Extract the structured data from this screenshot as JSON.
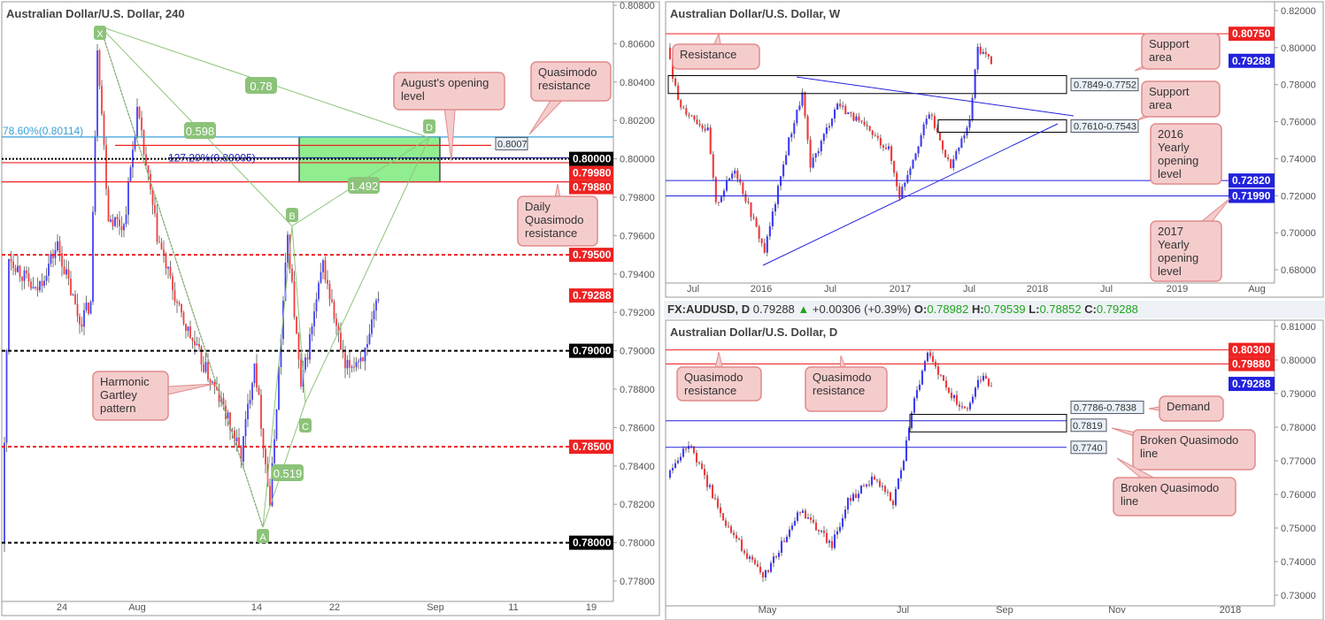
{
  "colors": {
    "up": "#3d3dfa",
    "down": "#f23a3a",
    "wick": "#555555",
    "pattern": "#8fc47a",
    "pattern_label_bg": "#8cc37a",
    "callout_bg": "#f5cccc",
    "callout_border": "#e08c8c",
    "green_zone": "#90ee90",
    "support_line": "#2222dd",
    "resistance_line": "#ee2222",
    "fib_line": "#3aa0d8"
  },
  "header": {
    "symbol": "FX:AUDUSD, D",
    "last": "0.79288",
    "change": "+0.00306 (+0.39%)",
    "arrow_icon": "triangle-up-icon",
    "o_label": "O:",
    "o": "0.78982",
    "h_label": "H:",
    "h": "0.79539",
    "l_label": "L:",
    "l": "0.78852",
    "c_label": "C:",
    "c": "0.79288"
  },
  "chart_data": [
    {
      "id": "left",
      "type": "candlestick",
      "title": "Australian Dollar/U.S. Dollar, 240",
      "ylim": [
        0.777,
        0.8085
      ],
      "y_ticks": [
        "0.80800",
        "0.80600",
        "0.80400",
        "0.80200",
        "0.80000",
        "0.79800",
        "0.79600",
        "0.79400",
        "0.79200",
        "0.79000",
        "0.78800",
        "0.78600",
        "0.78400",
        "0.78200",
        "0.78000",
        "0.77800"
      ],
      "x_ticks": [
        "24",
        "Aug",
        "14",
        "22",
        "Sep",
        "11",
        "19"
      ],
      "price_path": [
        [
          0,
          0.78
        ],
        [
          3,
          0.795
        ],
        [
          15,
          0.793
        ],
        [
          25,
          0.7955
        ],
        [
          35,
          0.7915
        ],
        [
          40,
          0.7925
        ],
        [
          43,
          0.806
        ],
        [
          48,
          0.797
        ],
        [
          55,
          0.7965
        ],
        [
          61,
          0.8025
        ],
        [
          70,
          0.796
        ],
        [
          80,
          0.792
        ],
        [
          90,
          0.7895
        ],
        [
          100,
          0.787
        ],
        [
          108,
          0.7845
        ],
        [
          114,
          0.7895
        ],
        [
          121,
          0.782
        ],
        [
          129,
          0.796
        ],
        [
          135,
          0.788
        ],
        [
          145,
          0.7945
        ],
        [
          155,
          0.789
        ],
        [
          165,
          0.79
        ],
        [
          170,
          0.793
        ]
      ],
      "levels": [
        {
          "price": 0.80114,
          "label": "78.60%(0.80114)",
          "color": "#3aa0d8",
          "style": "solid"
        },
        {
          "price": 0.8007,
          "label": "0.8007",
          "color": "#ee2222",
          "style": "solid"
        },
        {
          "price": 0.80005,
          "label": "127.20%(0.80005)",
          "color": "#2222aa",
          "style": "solid"
        },
        {
          "price": 0.8,
          "color": "#000000",
          "style": "dotted"
        },
        {
          "price": 0.7998,
          "color": "#ee2222",
          "style": "solid"
        },
        {
          "price": 0.7988,
          "color": "#ee2222",
          "style": "solid"
        },
        {
          "price": 0.795,
          "color": "#ee2222",
          "style": "dashed"
        },
        {
          "price": 0.79,
          "color": "#000000",
          "style": "dashed"
        },
        {
          "price": 0.785,
          "color": "#ee2222",
          "style": "dashed"
        },
        {
          "price": 0.78,
          "color": "#000000",
          "style": "dashed"
        }
      ],
      "axis_tags": [
        {
          "text": "0.80000",
          "price": 0.8,
          "color": "#000000"
        },
        {
          "text": "0.79980",
          "price": 0.7998,
          "color": "#ee2222"
        },
        {
          "text": "0.79880",
          "price": 0.7988,
          "color": "#ee2222"
        },
        {
          "text": "0.79500",
          "price": 0.795,
          "color": "#ee2222"
        },
        {
          "text": "0.79288",
          "price": 0.79288,
          "color": "#ee2222"
        },
        {
          "text": "0.79000",
          "price": 0.79,
          "color": "#000000"
        },
        {
          "text": "0.78500",
          "price": 0.785,
          "color": "#ee2222"
        },
        {
          "text": "0.78000",
          "price": 0.78,
          "color": "#000000"
        }
      ],
      "zone": {
        "top": 0.80114,
        "bottom": 0.7988
      },
      "pattern": {
        "name": "Harmonic Gartley pattern",
        "points": [
          {
            "label": "X",
            "price": 0.8069
          },
          {
            "label": "A",
            "price": 0.7808
          },
          {
            "label": "B",
            "price": 0.7965
          },
          {
            "label": "C",
            "price": 0.7873
          },
          {
            "label": "D",
            "price": 0.8011
          }
        ],
        "ratios": [
          "0.78",
          "0.598",
          "1.492",
          "0.519"
        ]
      },
      "callouts": [
        "August's opening level",
        "Quasimodo resistance",
        "Daily Quasimodo resistance",
        "Harmonic Gartley pattern"
      ]
    },
    {
      "id": "weekly",
      "type": "candlestick",
      "title": "Australian Dollar/U.S. Dollar, W",
      "ylim": [
        0.673,
        0.823
      ],
      "y_ticks": [
        "0.82000",
        "0.80000",
        "0.78000",
        "0.76000",
        "0.74000",
        "0.72000",
        "0.70000",
        "0.68000"
      ],
      "x_ticks": [
        "Jul",
        "2016",
        "Jul",
        "2017",
        "Jul",
        "2018",
        "Jul",
        "2019",
        "Aug"
      ],
      "price_path": [
        [
          0,
          0.8
        ],
        [
          4,
          0.77
        ],
        [
          15,
          0.755
        ],
        [
          18,
          0.715
        ],
        [
          25,
          0.735
        ],
        [
          36,
          0.69
        ],
        [
          45,
          0.75
        ],
        [
          50,
          0.775
        ],
        [
          53,
          0.735
        ],
        [
          63,
          0.77
        ],
        [
          82,
          0.745
        ],
        [
          86,
          0.72
        ],
        [
          97,
          0.765
        ],
        [
          105,
          0.735
        ],
        [
          112,
          0.76
        ],
        [
          115,
          0.8
        ],
        [
          120,
          0.7929
        ]
      ],
      "levels": [
        {
          "price": 0.8075,
          "color": "#ee2222"
        },
        {
          "price": 0.7282,
          "color": "#2222dd"
        },
        {
          "price": 0.7199,
          "color": "#2222dd"
        }
      ],
      "zones": [
        {
          "label": "0.7849-0.7752",
          "top": 0.7849,
          "bottom": 0.7752
        },
        {
          "label": "0.7610-0.7543",
          "top": 0.761,
          "bottom": 0.7543
        }
      ],
      "axis_tags": [
        {
          "text": "0.80750",
          "price": 0.8075,
          "color": "#ee2222"
        },
        {
          "text": "0.79288",
          "price": 0.79288,
          "color": "#2222dd"
        },
        {
          "text": "0.72820",
          "price": 0.7282,
          "color": "#2222dd"
        },
        {
          "text": "0.71990",
          "price": 0.7199,
          "color": "#2222dd"
        }
      ],
      "callouts": [
        "Resistance",
        "Support area",
        "Support area",
        "2016 Yearly opening level",
        "2017 Yearly opening level"
      ]
    },
    {
      "id": "daily",
      "type": "candlestick",
      "title": "Australian Dollar/U.S. Dollar, D",
      "ylim": [
        0.7275,
        0.8115
      ],
      "y_ticks": [
        "0.81000",
        "0.80000",
        "0.79000",
        "0.78000",
        "0.77000",
        "0.76000",
        "0.75000",
        "0.74000",
        "0.73000"
      ],
      "x_ticks": [
        "May",
        "Jul",
        "Sep",
        "Nov",
        "2018"
      ],
      "price_path": [
        [
          0,
          0.765
        ],
        [
          8,
          0.775
        ],
        [
          23,
          0.75
        ],
        [
          36,
          0.735
        ],
        [
          50,
          0.755
        ],
        [
          62,
          0.745
        ],
        [
          68,
          0.758
        ],
        [
          78,
          0.765
        ],
        [
          85,
          0.758
        ],
        [
          89,
          0.77
        ],
        [
          92,
          0.785
        ],
        [
          98,
          0.802
        ],
        [
          106,
          0.79
        ],
        [
          113,
          0.785
        ],
        [
          117,
          0.795
        ],
        [
          122,
          0.7929
        ]
      ],
      "levels": [
        {
          "price": 0.803,
          "color": "#ee2222"
        },
        {
          "price": 0.7988,
          "color": "#ee2222"
        },
        {
          "price": 0.7819,
          "label": "0.7819",
          "color": "#2222dd"
        },
        {
          "price": 0.774,
          "label": "0.7740",
          "color": "#2222dd"
        }
      ],
      "zones": [
        {
          "label": "0.7786-0.7838",
          "top": 0.7838,
          "bottom": 0.7786
        }
      ],
      "axis_tags": [
        {
          "text": "0.80300",
          "price": 0.803,
          "color": "#ee2222"
        },
        {
          "text": "0.79880",
          "price": 0.7988,
          "color": "#ee2222"
        },
        {
          "text": "0.79288",
          "price": 0.79288,
          "color": "#2222dd"
        }
      ],
      "callouts": [
        "Quasimodo resistance",
        "Quasimodo resistance",
        "Demand",
        "Broken Quasimodo line",
        "Broken Quasimodo line"
      ]
    }
  ]
}
